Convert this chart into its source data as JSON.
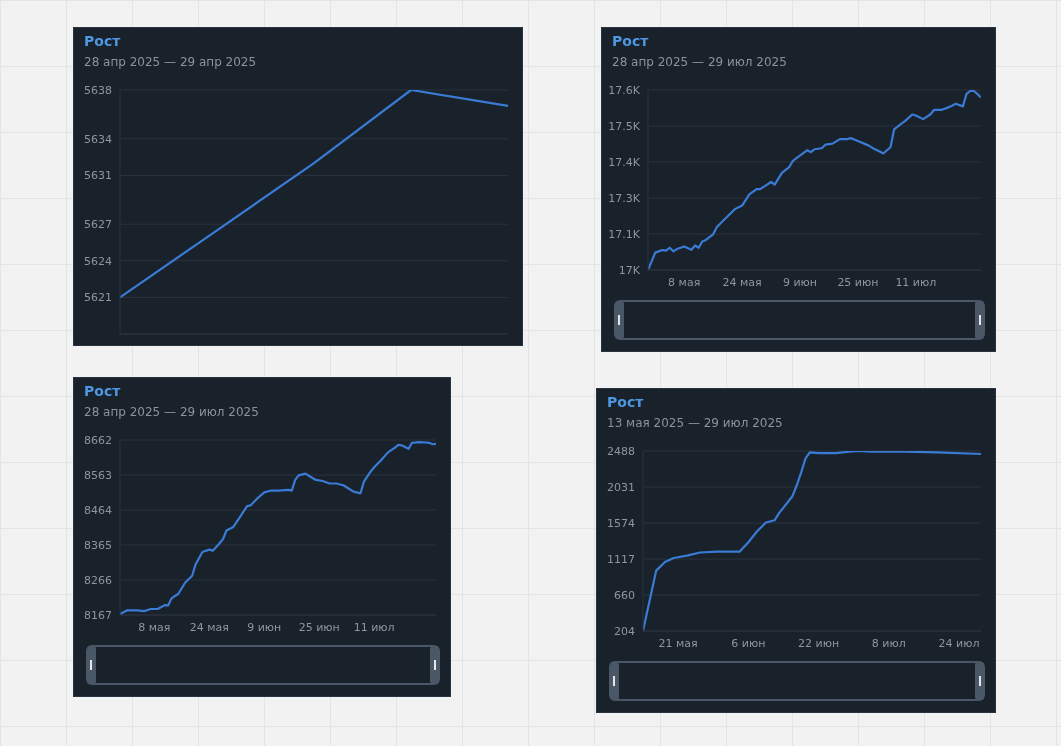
{
  "chart_data": [
    {
      "type": "line",
      "title": "Рост",
      "subtitle": "28 апр 2025 — 29 апр 2025",
      "categories": [
        null,
        null,
        null,
        null,
        null
      ],
      "values": [
        5621,
        5626.5,
        5632,
        5638,
        5636.7
      ],
      "color": "#3a7bd5",
      "ylim": [
        5618,
        5638
      ],
      "yticks": [
        5621,
        5624,
        5627,
        5631,
        5634,
        5638
      ],
      "grid": "y",
      "tick_labels": "y"
    },
    {
      "type": "line",
      "title": "Рост",
      "subtitle": "28 апр 2025 — 29 июл 2025",
      "x": [
        "2025-04-28",
        "2025-04-30",
        "2025-05-02",
        "2025-05-03",
        "2025-05-04",
        "2025-05-05",
        "2025-05-06",
        "2025-05-08",
        "2025-05-10",
        "2025-05-11",
        "2025-05-12",
        "2025-05-13",
        "2025-05-14",
        "2025-05-16",
        "2025-05-17",
        "2025-05-18",
        "2025-05-20",
        "2025-05-22",
        "2025-05-24",
        "2025-05-26",
        "2025-05-28",
        "2025-05-29",
        "2025-06-01",
        "2025-06-02",
        "2025-06-04",
        "2025-06-06",
        "2025-06-07",
        "2025-06-08",
        "2025-06-10",
        "2025-06-11",
        "2025-06-12",
        "2025-06-13",
        "2025-06-15",
        "2025-06-16",
        "2025-06-18",
        "2025-06-20",
        "2025-06-22",
        "2025-06-23",
        "2025-06-25",
        "2025-06-28",
        "2025-06-29",
        "2025-07-01",
        "2025-07-02",
        "2025-07-04",
        "2025-07-05",
        "2025-07-07",
        "2025-07-08",
        "2025-07-10",
        "2025-07-11",
        "2025-07-13",
        "2025-07-15",
        "2025-07-16",
        "2025-07-18",
        "2025-07-20",
        "2025-07-21",
        "2025-07-22",
        "2025-07-24",
        "2025-07-25",
        "2025-07-26",
        "2025-07-27",
        "2025-07-28",
        "2025-07-29"
      ],
      "values": [
        17030,
        17083,
        17091,
        17089,
        17098,
        17087,
        17094,
        17102,
        17092,
        17105,
        17098,
        17117,
        17122,
        17139,
        17161,
        17172,
        17194,
        17216,
        17227,
        17261,
        17277,
        17277,
        17299,
        17291,
        17327,
        17344,
        17363,
        17372,
        17388,
        17396,
        17390,
        17399,
        17402,
        17413,
        17416,
        17430,
        17430,
        17433,
        17424,
        17410,
        17403,
        17392,
        17386,
        17405,
        17460,
        17477,
        17485,
        17505,
        17502,
        17491,
        17505,
        17519,
        17519,
        17527,
        17532,
        17538,
        17530,
        17568,
        17577,
        17577,
        17568,
        17557
      ],
      "color": "#3a7bd5",
      "xlim": [
        "2025-04-28",
        "2025-07-29"
      ],
      "xticks": [
        {
          "value": "2025-05-08",
          "label": "8 мая"
        },
        {
          "value": "2025-05-24",
          "label": "24 мая"
        },
        {
          "value": "2025-06-09",
          "label": "9 июн"
        },
        {
          "value": "2025-06-25",
          "label": "25 июн"
        },
        {
          "value": "2025-07-11",
          "label": "11 июл"
        }
      ],
      "ylim": [
        17030,
        17580
      ],
      "yticks": [
        {
          "value": 17030,
          "label": "17K"
        },
        {
          "value": 17140,
          "label": "17.1K"
        },
        {
          "value": 17250,
          "label": "17.3K"
        },
        {
          "value": 17360,
          "label": "17.4K"
        },
        {
          "value": 17470,
          "label": "17.5K"
        },
        {
          "value": 17580,
          "label": "17.6K"
        }
      ],
      "grid": "y"
    },
    {
      "type": "line",
      "title": "Рост",
      "subtitle": "28 апр 2025 — 29 июл 2025",
      "x": [
        "2025-04-28",
        "2025-04-30",
        "2025-05-03",
        "2025-05-05",
        "2025-05-07",
        "2025-05-09",
        "2025-05-11",
        "2025-05-12",
        "2025-05-13",
        "2025-05-15",
        "2025-05-17",
        "2025-05-19",
        "2025-05-20",
        "2025-05-22",
        "2025-05-24",
        "2025-05-25",
        "2025-05-27",
        "2025-05-28",
        "2025-05-29",
        "2025-05-31",
        "2025-06-02",
        "2025-06-04",
        "2025-06-05",
        "2025-06-07",
        "2025-06-09",
        "2025-06-11",
        "2025-06-13",
        "2025-06-16",
        "2025-06-17",
        "2025-06-18",
        "2025-06-19",
        "2025-06-21",
        "2025-06-22",
        "2025-06-24",
        "2025-06-26",
        "2025-06-28",
        "2025-06-30",
        "2025-07-02",
        "2025-07-04",
        "2025-07-05",
        "2025-07-07",
        "2025-07-08",
        "2025-07-10",
        "2025-07-11",
        "2025-07-13",
        "2025-07-15",
        "2025-07-17",
        "2025-07-18",
        "2025-07-19",
        "2025-07-21",
        "2025-07-22",
        "2025-07-24",
        "2025-07-26",
        "2025-07-27",
        "2025-07-28",
        "2025-07-29"
      ],
      "values": [
        8170,
        8180,
        8180,
        8178,
        8184,
        8184,
        8195,
        8194,
        8214,
        8227,
        8259,
        8278,
        8310,
        8345,
        8352,
        8349,
        8370,
        8382,
        8406,
        8416,
        8445,
        8475,
        8477,
        8497,
        8514,
        8519,
        8519,
        8521,
        8519,
        8549,
        8562,
        8567,
        8561,
        8549,
        8546,
        8539,
        8539,
        8534,
        8522,
        8516,
        8511,
        8544,
        8573,
        8585,
        8605,
        8627,
        8640,
        8648,
        8647,
        8637,
        8654,
        8656,
        8655,
        8654,
        8650,
        8651
      ],
      "color": "#3a7bd5",
      "xlim": [
        "2025-04-28",
        "2025-07-29"
      ],
      "xticks": [
        {
          "value": "2025-05-08",
          "label": "8 мая"
        },
        {
          "value": "2025-05-24",
          "label": "24 мая"
        },
        {
          "value": "2025-06-09",
          "label": "9 июн"
        },
        {
          "value": "2025-06-25",
          "label": "25 июн"
        },
        {
          "value": "2025-07-11",
          "label": "11 июл"
        }
      ],
      "ylim": [
        8167,
        8662
      ],
      "yticks": [
        8167,
        8266,
        8365,
        8464,
        8563,
        8662
      ],
      "grid": "y"
    },
    {
      "type": "line",
      "title": "Рост",
      "subtitle": "13 мая 2025 — 29 июл 2025",
      "x": [
        "2025-05-13",
        "2025-05-14",
        "2025-05-16",
        "2025-05-18",
        "2025-05-20",
        "2025-05-23",
        "2025-05-26",
        "2025-05-30",
        "2025-06-04",
        "2025-06-05",
        "2025-06-06",
        "2025-06-08",
        "2025-06-10",
        "2025-06-12",
        "2025-06-13",
        "2025-06-14",
        "2025-06-16",
        "2025-06-17",
        "2025-06-18",
        "2025-06-19",
        "2025-06-20",
        "2025-06-22",
        "2025-06-26",
        "2025-06-29",
        "2025-07-01",
        "2025-07-04",
        "2025-07-12",
        "2025-07-19",
        "2025-07-29"
      ],
      "values": [
        204,
        460,
        970,
        1080,
        1130,
        1160,
        1200,
        1210,
        1210,
        1270,
        1330,
        1470,
        1580,
        1610,
        1700,
        1770,
        1910,
        2050,
        2210,
        2390,
        2470,
        2460,
        2460,
        2480,
        2488,
        2480,
        2480,
        2470,
        2450
      ],
      "color": "#3a7bd5",
      "xlim": [
        "2025-05-13",
        "2025-07-29"
      ],
      "xticks": [
        {
          "value": "2025-05-21",
          "label": "21 мая"
        },
        {
          "value": "2025-06-06",
          "label": "6 июн"
        },
        {
          "value": "2025-06-22",
          "label": "22 июн"
        },
        {
          "value": "2025-07-08",
          "label": "8 июл"
        },
        {
          "value": "2025-07-24",
          "label": "24 июл"
        }
      ],
      "ylim": [
        204,
        2488
      ],
      "yticks": [
        204,
        660,
        1117,
        1574,
        2031,
        2488
      ],
      "grid": "y"
    }
  ]
}
